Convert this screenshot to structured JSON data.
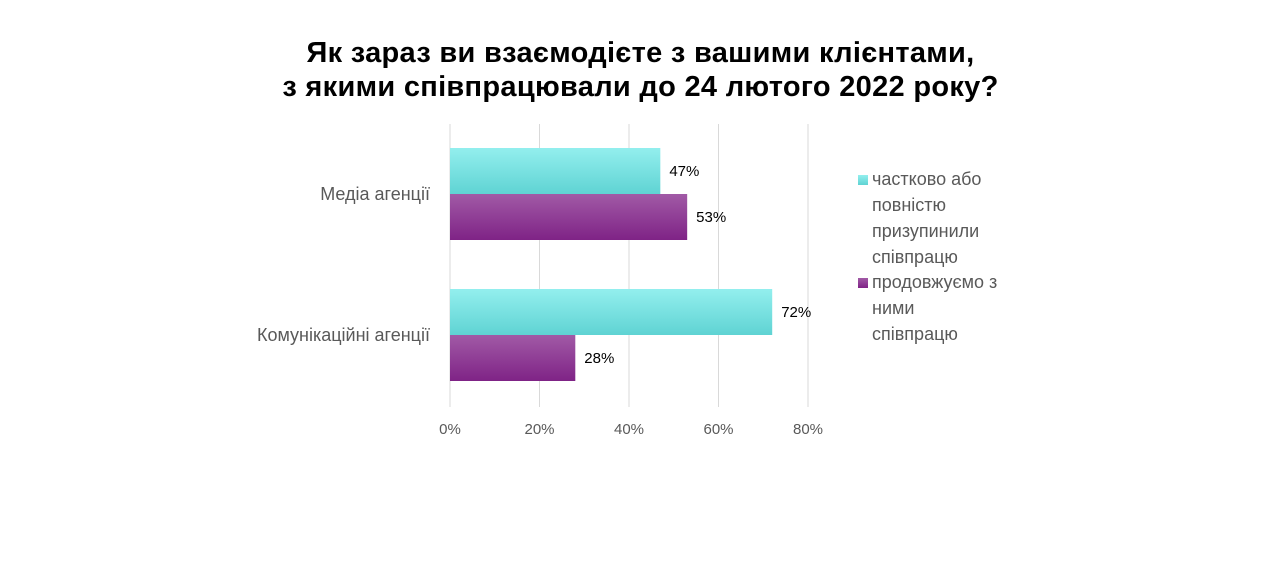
{
  "title_lines": [
    "Як зараз ви взаємодієте з вашими клієнтами,",
    "з якими співпрацювали до 24 лютого 2022 року?"
  ],
  "chart_data": {
    "type": "bar",
    "orientation": "horizontal",
    "title": "Як зараз ви взаємодієте з вашими клієнтами, з якими співпрацювали до 24 лютого 2022 року?",
    "categories": [
      "Медіа агенції",
      "Комунікаційні агенції"
    ],
    "series": [
      {
        "name": "частково або повністю призупинили співпрацю",
        "legend_lines": [
          "частково або",
          "повністю",
          "призупинили",
          "співпрацю"
        ],
        "values": [
          47,
          72
        ],
        "labels": [
          "47%",
          "72%"
        ],
        "color": "#6fdcdc"
      },
      {
        "name": "продовжуємо з ними співпрацю",
        "legend_lines": [
          "продовжуємо з",
          "ними",
          "співпрацю"
        ],
        "values": [
          53,
          28
        ],
        "labels": [
          "53%",
          "28%"
        ],
        "color": "#8a2f8e"
      }
    ],
    "xlim": [
      0,
      80
    ],
    "x_ticks": [
      0,
      20,
      40,
      60,
      80
    ],
    "x_tick_labels": [
      "0%",
      "20%",
      "40%",
      "60%",
      "80%"
    ],
    "grid": true,
    "legend_position": "right",
    "xlabel": "",
    "ylabel": ""
  }
}
